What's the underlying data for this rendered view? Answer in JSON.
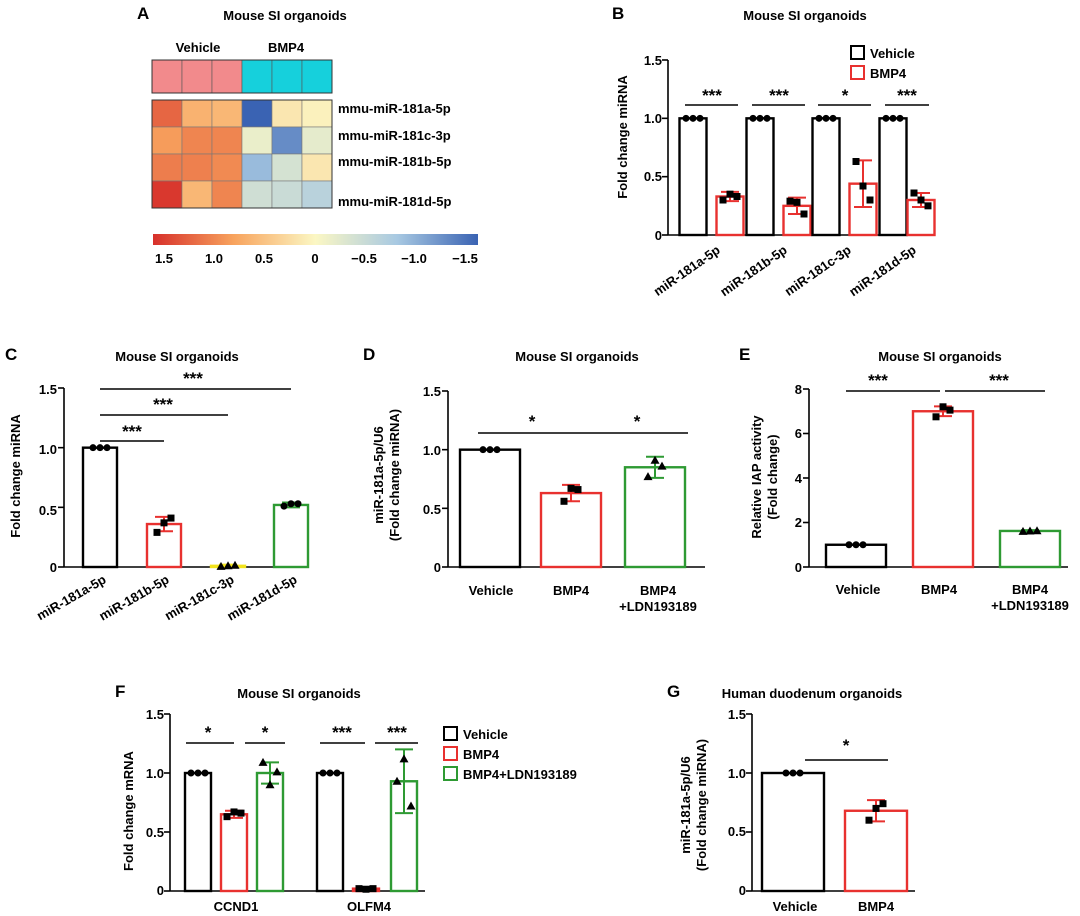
{
  "colors": {
    "vehicle": "#000000",
    "bmp4": "#e8312f",
    "ldn": "#2e9a33",
    "pink": "#f28a8c",
    "cyan": "#16d0dc",
    "yellow": "#f2e31c"
  },
  "panel_a": {
    "letter": "A",
    "title": "Mouse SI organoids",
    "group_labels": [
      "Vehicle",
      "BMP4"
    ],
    "rows": [
      "mmu-miR-181a-5p",
      "mmu-miR-181c-3p",
      "mmu-miR-181b-5p",
      "mmu-miR-181d-5p"
    ],
    "colorbar_ticks": [
      "1.5",
      "1.0",
      "0.5",
      "0",
      "−0.5",
      "−1.0",
      "−1.5"
    ]
  },
  "panel_b": {
    "letter": "B",
    "title": "Mouse SI organoids",
    "ylabel": "Fold change miRNA",
    "yticks": [
      "0",
      "0.5",
      "1.0",
      "1.5"
    ],
    "legend": [
      "Vehicle",
      "BMP4"
    ],
    "sig": [
      "***",
      "***",
      "*",
      "***"
    ],
    "categories": [
      "miR-181a-5p",
      "miR-181b-5p",
      "miR-181c-3p",
      "miR-181d-5p"
    ]
  },
  "panel_c": {
    "letter": "C",
    "title": "Mouse SI organoids",
    "ylabel": "Fold change miRNA",
    "yticks": [
      "0",
      "0.5",
      "1.0",
      "1.5"
    ],
    "sig": [
      "***",
      "***",
      "***"
    ],
    "categories": [
      "miR-181a-5p",
      "miR-181b-5p",
      "miR-181c-3p",
      "miR-181d-5p"
    ]
  },
  "panel_d": {
    "letter": "D",
    "title": "Mouse SI organoids",
    "ylabel1": "miR-181a-5p/U6",
    "ylabel2": "(Fold change miRNA)",
    "yticks": [
      "0",
      "0.5",
      "1.0",
      "1.5"
    ],
    "sig": [
      "*",
      "*"
    ],
    "xlabels": [
      "Vehicle",
      "BMP4",
      "BMP4",
      "+LDN193189"
    ]
  },
  "panel_e": {
    "letter": "E",
    "title": "Mouse SI organoids",
    "ylabel1": "Relative IAP activity",
    "ylabel2": "(Fold change)",
    "yticks": [
      "0",
      "2",
      "4",
      "6",
      "8"
    ],
    "sig": [
      "***",
      "***"
    ],
    "xlabels": [
      "Vehicle",
      "BMP4",
      "BMP4",
      "+LDN193189"
    ]
  },
  "panel_f": {
    "letter": "F",
    "title": "Mouse SI organoids",
    "ylabel": "Fold change mRNA",
    "yticks": [
      "0",
      "0.5",
      "1.0",
      "1.5"
    ],
    "sig": [
      "*",
      "*",
      "***",
      "***"
    ],
    "categories": [
      "CCND1",
      "OLFM4"
    ],
    "legend": [
      "Vehicle",
      "BMP4",
      "BMP4+LDN193189"
    ]
  },
  "panel_g": {
    "letter": "G",
    "title": "Human duodenum organoids",
    "ylabel1": "miR-181a-5p/U6",
    "ylabel2": "(Fold change miRNA)",
    "yticks": [
      "0",
      "0.5",
      "1.0",
      "1.5"
    ],
    "sig": [
      "*"
    ],
    "xlabels": [
      "Vehicle",
      "BMP4"
    ]
  },
  "chart_data": [
    {
      "type": "heatmap",
      "panel": "A",
      "columns": 6,
      "group_labels": [
        "Vehicle",
        "BMP4"
      ],
      "rows": [
        "mmu-miR-181a-5p",
        "mmu-miR-181c-3p",
        "mmu-miR-181b-5p",
        "mmu-miR-181d-5p"
      ],
      "values": [
        [
          1.15,
          0.62,
          0.58,
          -1.5,
          0.15,
          0.05
        ],
        [
          0.8,
          0.95,
          0.95,
          -0.15,
          -1.2,
          -0.2
        ],
        [
          1.0,
          0.98,
          0.92,
          -0.85,
          -0.35,
          0.15
        ],
        [
          1.45,
          0.58,
          0.95,
          -0.4,
          -0.45,
          -0.6
        ]
      ],
      "colorbar_range": [
        1.5,
        -1.5
      ]
    },
    {
      "type": "bar",
      "panel": "B",
      "ylabel": "Fold change miRNA",
      "ylim": [
        0,
        1.5
      ],
      "categories": [
        "miR-181a-5p",
        "miR-181b-5p",
        "miR-181c-3p",
        "miR-181d-5p"
      ],
      "series": [
        {
          "name": "Vehicle",
          "values": [
            1.0,
            1.0,
            1.0,
            1.0
          ],
          "errors": [
            0,
            0,
            0,
            0
          ]
        },
        {
          "name": "BMP4",
          "values": [
            0.33,
            0.25,
            0.44,
            0.3
          ],
          "errors": [
            0.04,
            0.07,
            0.2,
            0.06
          ]
        }
      ],
      "points": [
        [
          [
            1,
            1,
            1
          ],
          [
            0.3,
            0.35,
            0.33
          ]
        ],
        [
          [
            1,
            1,
            1
          ],
          [
            0.29,
            0.28,
            0.18
          ]
        ],
        [
          [
            1,
            1,
            1
          ],
          [
            0.63,
            0.42,
            0.3
          ]
        ],
        [
          [
            1,
            1,
            1
          ],
          [
            0.36,
            0.3,
            0.25
          ]
        ]
      ],
      "significance": [
        "***",
        "***",
        "*",
        "***"
      ]
    },
    {
      "type": "bar",
      "panel": "C",
      "ylabel": "Fold change miRNA",
      "ylim": [
        0,
        1.5
      ],
      "categories": [
        "miR-181a-5p",
        "miR-181b-5p",
        "miR-181c-3p",
        "miR-181d-5p"
      ],
      "values": [
        1.0,
        0.36,
        0.01,
        0.52
      ],
      "errors": [
        0,
        0.06,
        0.01,
        0.02
      ],
      "points": [
        [
          1,
          1,
          1
        ],
        [
          0.29,
          0.37,
          0.41
        ],
        [
          0.005,
          0.01,
          0.015
        ],
        [
          0.51,
          0.53,
          0.53
        ]
      ],
      "significance": [
        "***",
        "***",
        "***"
      ]
    },
    {
      "type": "bar",
      "panel": "D",
      "ylabel": "miR-181a-5p/U6 (Fold change miRNA)",
      "ylim": [
        0,
        1.5
      ],
      "categories": [
        "Vehicle",
        "BMP4",
        "BMP4+LDN193189"
      ],
      "values": [
        1.0,
        0.63,
        0.85
      ],
      "errors": [
        0,
        0.07,
        0.09
      ],
      "points": [
        [
          1,
          1,
          1
        ],
        [
          0.56,
          0.67,
          0.66
        ],
        [
          0.77,
          0.91,
          0.86
        ]
      ],
      "significance": [
        "*",
        "*"
      ]
    },
    {
      "type": "bar",
      "panel": "E",
      "ylabel": "Relative IAP activity (Fold change)",
      "ylim": [
        0,
        8
      ],
      "categories": [
        "Vehicle",
        "BMP4",
        "BMP4+LDN193189"
      ],
      "values": [
        1.0,
        7.0,
        1.62
      ],
      "errors": [
        0,
        0.22,
        0.04
      ],
      "points": [
        [
          1,
          1,
          1
        ],
        [
          6.75,
          7.2,
          7.05
        ],
        [
          1.6,
          1.62,
          1.63
        ]
      ],
      "significance": [
        "***",
        "***"
      ]
    },
    {
      "type": "bar",
      "panel": "F",
      "ylabel": "Fold change mRNA",
      "ylim": [
        0,
        1.5
      ],
      "categories": [
        "CCND1",
        "OLFM4"
      ],
      "series": [
        {
          "name": "Vehicle",
          "values": [
            1.0,
            1.0
          ],
          "errors": [
            0,
            0
          ]
        },
        {
          "name": "BMP4",
          "values": [
            0.65,
            0.02
          ],
          "errors": [
            0.03,
            0.01
          ]
        },
        {
          "name": "BMP4+LDN193189",
          "values": [
            1.0,
            0.93
          ],
          "errors": [
            0.09,
            0.27
          ]
        }
      ],
      "points": [
        [
          [
            1,
            1,
            1
          ],
          [
            0.63,
            0.67,
            0.66
          ],
          [
            1.09,
            0.9,
            1.01
          ]
        ],
        [
          [
            1,
            1,
            1
          ],
          [
            0.02,
            0.015,
            0.02
          ],
          [
            0.93,
            1.12,
            0.72
          ]
        ]
      ],
      "significance": [
        "*",
        "*",
        "***",
        "***"
      ]
    },
    {
      "type": "bar",
      "panel": "G",
      "ylabel": "miR-181a-5p/U6 (Fold change miRNA)",
      "ylim": [
        0,
        1.5
      ],
      "categories": [
        "Vehicle",
        "BMP4"
      ],
      "values": [
        1.0,
        0.68
      ],
      "errors": [
        0,
        0.09
      ],
      "points": [
        [
          1,
          1,
          1
        ],
        [
          0.6,
          0.7,
          0.74
        ]
      ],
      "significance": [
        "*"
      ]
    }
  ]
}
